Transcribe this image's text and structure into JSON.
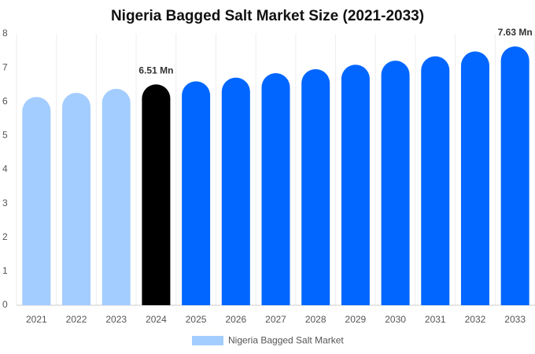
{
  "chart_data": {
    "type": "bar",
    "title": "Nigeria Bagged Salt Market Size (2021-2033)",
    "categories": [
      "2021",
      "2022",
      "2023",
      "2024",
      "2025",
      "2026",
      "2027",
      "2028",
      "2029",
      "2030",
      "2031",
      "2032",
      "2033"
    ],
    "series": [
      {
        "name": "Nigeria Bagged Salt Market",
        "color": "#a3cdff",
        "values": [
          6.14,
          6.26,
          6.38,
          6.51,
          6.6,
          6.71,
          6.84,
          6.96,
          7.09,
          7.21,
          7.34,
          7.48,
          7.63
        ],
        "value_labels": [
          null,
          null,
          null,
          "6.51 Mn",
          null,
          null,
          null,
          null,
          null,
          null,
          null,
          null,
          "7.63 Mn"
        ],
        "colors": [
          "#a3cdff",
          "#a3cdff",
          "#a3cdff",
          "#000000",
          "#0066ff",
          "#0066ff",
          "#0066ff",
          "#0066ff",
          "#0066ff",
          "#0066ff",
          "#0066ff",
          "#0066ff",
          "#0066ff"
        ]
      }
    ],
    "ylim": [
      0,
      8
    ],
    "yticks": [
      0,
      1,
      2,
      3,
      4,
      5,
      6,
      7,
      8
    ],
    "grid": false,
    "legend": "bottom"
  }
}
